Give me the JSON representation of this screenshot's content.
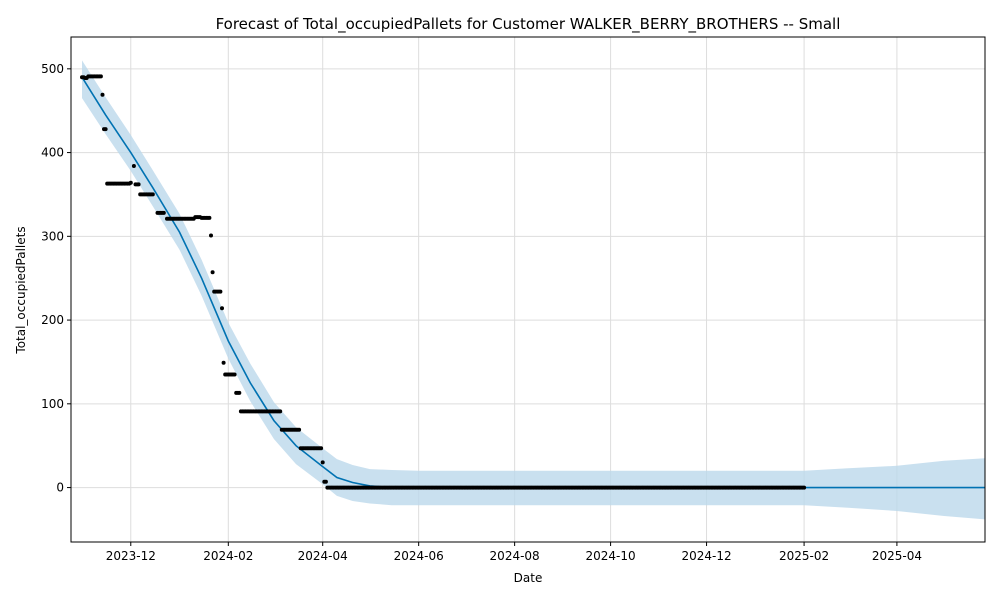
{
  "chart_data": {
    "type": "line",
    "title": "Forecast of Total_occupiedPallets for Customer WALKER_BERRY_BROTHERS -- Small",
    "xlabel": "Date",
    "ylabel": "Total_occupiedPallets",
    "xlim": [
      "2023-10-24",
      "2025-05-27"
    ],
    "ylim": [
      -65,
      538
    ],
    "grid": true,
    "x_ticks": [
      {
        "date": "2023-12-01",
        "label": "2023-12"
      },
      {
        "date": "2024-02-01",
        "label": "2024-02"
      },
      {
        "date": "2024-04-01",
        "label": "2024-04"
      },
      {
        "date": "2024-06-01",
        "label": "2024-06"
      },
      {
        "date": "2024-08-01",
        "label": "2024-08"
      },
      {
        "date": "2024-10-01",
        "label": "2024-10"
      },
      {
        "date": "2024-12-01",
        "label": "2024-12"
      },
      {
        "date": "2025-02-01",
        "label": "2025-02"
      },
      {
        "date": "2025-04-01",
        "label": "2025-04"
      }
    ],
    "y_ticks": [
      {
        "value": 0,
        "label": "0"
      },
      {
        "value": 100,
        "label": "100"
      },
      {
        "value": 200,
        "label": "200"
      },
      {
        "value": 300,
        "label": "300"
      },
      {
        "value": 400,
        "label": "400"
      },
      {
        "value": 500,
        "label": "500"
      }
    ],
    "colors": {
      "forecast": "#0072B2",
      "interval": "#bcd8eb",
      "observed": "#000000",
      "grid": "#dddddd"
    },
    "forecast": {
      "x": [
        "2023-10-31",
        "2023-11-15",
        "2023-12-01",
        "2023-12-15",
        "2024-01-01",
        "2024-01-15",
        "2024-02-01",
        "2024-02-15",
        "2024-03-01",
        "2024-03-15",
        "2024-04-01",
        "2024-04-10",
        "2024-04-20",
        "2024-05-01",
        "2024-05-15",
        "2024-06-01",
        "2025-02-01",
        "2025-05-27"
      ],
      "y": [
        490,
        445,
        400,
        358,
        305,
        250,
        175,
        125,
        80,
        50,
        25,
        12,
        6,
        2,
        0,
        0,
        0,
        0
      ]
    },
    "interval": {
      "x": [
        "2023-10-31",
        "2023-11-15",
        "2023-12-01",
        "2023-12-15",
        "2024-01-01",
        "2024-01-15",
        "2024-02-01",
        "2024-02-15",
        "2024-03-01",
        "2024-03-15",
        "2024-04-01",
        "2024-04-10",
        "2024-04-20",
        "2024-05-01",
        "2024-05-15",
        "2024-06-01",
        "2024-08-01",
        "2024-10-01",
        "2024-12-01",
        "2025-02-01",
        "2025-03-01",
        "2025-04-01",
        "2025-05-01",
        "2025-05-27"
      ],
      "upper": [
        510,
        466,
        421,
        379,
        327,
        272,
        197,
        148,
        102,
        72,
        47,
        34,
        27,
        22,
        21,
        20,
        20,
        20,
        20,
        20,
        23,
        26,
        32,
        35
      ],
      "lower": [
        465,
        422,
        378,
        336,
        284,
        229,
        154,
        103,
        58,
        28,
        4,
        -10,
        -16,
        -19,
        -21,
        -21,
        -21,
        -21,
        -21,
        -21,
        -24,
        -28,
        -34,
        -38
      ]
    },
    "observed": [
      {
        "start": "2023-10-31",
        "end": "2023-11-01",
        "value": 490
      },
      {
        "start": "2023-11-02",
        "end": "2023-11-03",
        "value": 489
      },
      {
        "start": "2023-11-04",
        "end": "2023-11-12",
        "value": 491
      },
      {
        "start": "2023-11-13",
        "end": "2023-11-13",
        "value": 469
      },
      {
        "start": "2023-11-14",
        "end": "2023-11-15",
        "value": 428
      },
      {
        "start": "2023-11-16",
        "end": "2023-11-30",
        "value": 363
      },
      {
        "start": "2023-12-01",
        "end": "2023-12-01",
        "value": 364
      },
      {
        "start": "2023-12-03",
        "end": "2023-12-03",
        "value": 384
      },
      {
        "start": "2023-12-04",
        "end": "2023-12-06",
        "value": 362
      },
      {
        "start": "2023-12-07",
        "end": "2023-12-15",
        "value": 350
      },
      {
        "start": "2023-12-18",
        "end": "2023-12-22",
        "value": 328
      },
      {
        "start": "2023-12-24",
        "end": "2024-01-10",
        "value": 321
      },
      {
        "start": "2024-01-11",
        "end": "2024-01-14",
        "value": 323
      },
      {
        "start": "2024-01-15",
        "end": "2024-01-20",
        "value": 322
      },
      {
        "start": "2024-01-21",
        "end": "2024-01-21",
        "value": 301
      },
      {
        "start": "2024-01-22",
        "end": "2024-01-22",
        "value": 257
      },
      {
        "start": "2024-01-23",
        "end": "2024-01-27",
        "value": 234
      },
      {
        "start": "2024-01-28",
        "end": "2024-01-28",
        "value": 214
      },
      {
        "start": "2024-01-29",
        "end": "2024-01-29",
        "value": 149
      },
      {
        "start": "2024-01-30",
        "end": "2024-02-05",
        "value": 135
      },
      {
        "start": "2024-02-06",
        "end": "2024-02-08",
        "value": 113
      },
      {
        "start": "2024-02-09",
        "end": "2024-03-05",
        "value": 91
      },
      {
        "start": "2024-03-06",
        "end": "2024-03-17",
        "value": 69
      },
      {
        "start": "2024-03-18",
        "end": "2024-03-31",
        "value": 47
      },
      {
        "start": "2024-04-01",
        "end": "2024-04-01",
        "value": 30
      },
      {
        "start": "2024-04-02",
        "end": "2024-04-03",
        "value": 7
      },
      {
        "start": "2024-04-04",
        "end": "2025-02-01",
        "value": 0
      }
    ]
  }
}
